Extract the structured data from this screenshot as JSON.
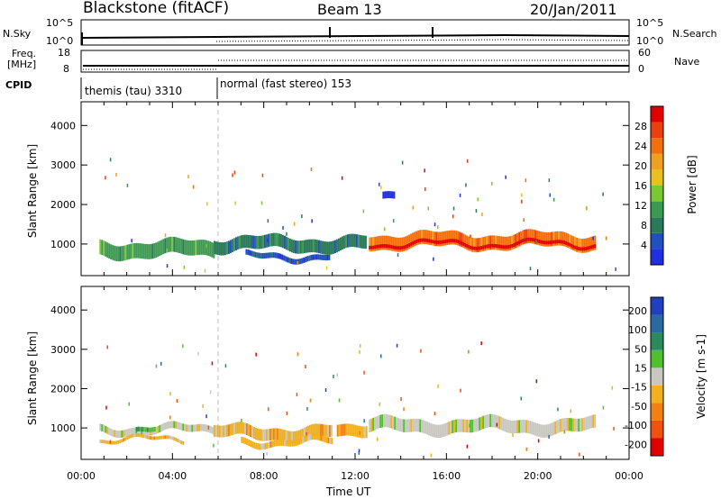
{
  "header": {
    "station": "Blackstone (fitACF)",
    "beam": "Beam 13",
    "date": "20/Jan/2011"
  },
  "noise_panel": {
    "left_label": "N.Sky",
    "right_label": "N.Search",
    "left_ticks": [
      "10^5",
      "10^0"
    ],
    "right_ticks": [
      "10^5",
      "10^0"
    ]
  },
  "freq_panel": {
    "left_label_1": "Freq.",
    "left_label_2": "[MHz]",
    "right_label": "Nave",
    "left_ticks": [
      "18",
      "8"
    ],
    "right_ticks": [
      "60",
      "0"
    ]
  },
  "cpid": {
    "label": "CPID",
    "modes": [
      {
        "name": "themis (tau) 3310",
        "start_hour": 0
      },
      {
        "name": "normal (fast stereo) 153",
        "start_hour": 6
      }
    ]
  },
  "chart_data": [
    {
      "type": "heatmap",
      "panel": "power",
      "ylabel": "Slant Range [km]",
      "yticks": [
        1000,
        2000,
        3000,
        4000
      ],
      "ylim": [
        200,
        4600
      ],
      "xlim_hours": [
        0,
        24
      ],
      "colorbar_label": "Power [dB]",
      "colorbar_ticks": [
        "4",
        "8",
        "12",
        "16",
        "20",
        "24",
        "28"
      ],
      "colorbar_colors": [
        "#2030e0",
        "#2050c0",
        "#2a7a5a",
        "#3a9a50",
        "#7ac832",
        "#e8c020",
        "#f0a020",
        "#f07010",
        "#e84010",
        "#e00000"
      ],
      "bands": [
        {
          "t0": 0.8,
          "t1": 5.8,
          "r_center": 870,
          "r_width": 380,
          "level": 3
        },
        {
          "t0": 5.8,
          "t1": 12.5,
          "r_center": 1000,
          "r_width": 330,
          "level": 2
        },
        {
          "t0": 7.2,
          "t1": 10.9,
          "r_center": 680,
          "r_width": 140,
          "level": 1
        },
        {
          "t0": 12.6,
          "t1": 22.5,
          "r_center": 1080,
          "r_width": 360,
          "level": 7
        },
        {
          "t0": 13.2,
          "t1": 13.7,
          "r_center": 2250,
          "r_width": 180,
          "level": 0
        }
      ]
    },
    {
      "type": "heatmap",
      "panel": "velocity",
      "ylabel": "Slant Range [km]",
      "yticks": [
        1000,
        2000,
        3000,
        4000
      ],
      "ylim": [
        200,
        4600
      ],
      "xlim_hours": [
        0,
        24
      ],
      "colorbar_label": "Velocity [m s-1]",
      "colorbar_ticks": [
        "200",
        "100",
        "50",
        "15",
        "-15",
        "-50",
        "-100",
        "-200"
      ],
      "colorbar_colors": [
        "#2040c0",
        "#2a6aa0",
        "#2a8a5a",
        "#50c030",
        "#c8c8c0",
        "#f0b020",
        "#f08010",
        "#f05010",
        "#e00000"
      ],
      "bands": [
        {
          "t0": 0.8,
          "t1": 5.8,
          "r_center": 960,
          "r_width": 180,
          "level": 4
        },
        {
          "t0": 2.4,
          "t1": 3.2,
          "r_center": 930,
          "r_width": 120,
          "level": 3
        },
        {
          "t0": 0.8,
          "t1": 4.5,
          "r_center": 700,
          "r_width": 90,
          "level": 5
        },
        {
          "t0": 5.8,
          "t1": 11.0,
          "r_center": 880,
          "r_width": 300,
          "level": 5
        },
        {
          "t0": 7.0,
          "t1": 11.0,
          "r_center": 650,
          "r_width": 160,
          "level": 5
        },
        {
          "t0": 11.2,
          "t1": 12.5,
          "r_center": 1000,
          "r_width": 300,
          "level": 5
        },
        {
          "t0": 12.6,
          "t1": 22.5,
          "r_center": 1050,
          "r_width": 330,
          "level": 4
        }
      ]
    }
  ],
  "xaxis": {
    "label": "Time UT",
    "ticks": [
      "00:00",
      "04:00",
      "08:00",
      "12:00",
      "16:00",
      "20:00",
      "00:00"
    ],
    "tick_hours": [
      0,
      4,
      8,
      12,
      16,
      20,
      24
    ]
  }
}
